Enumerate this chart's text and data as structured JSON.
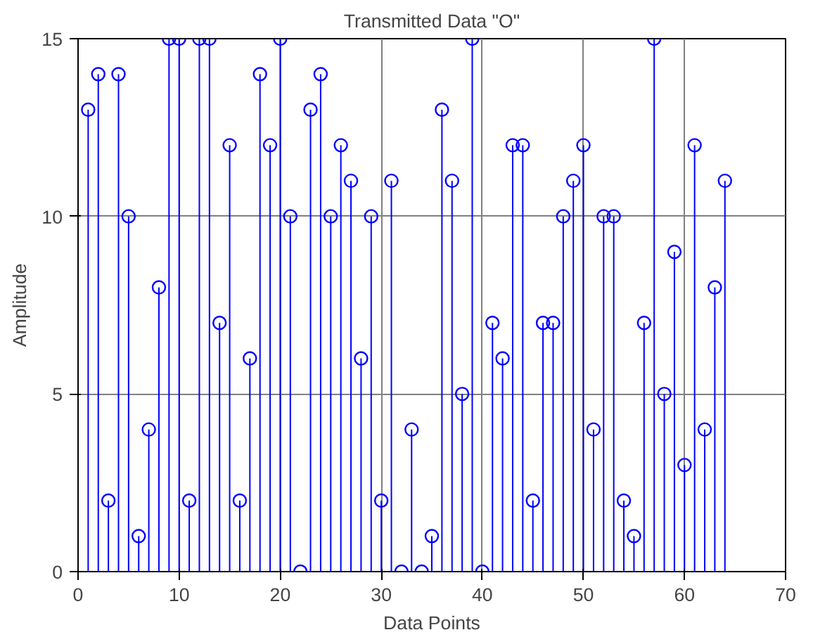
{
  "chart_data": {
    "type": "lollipop",
    "title": "Transmitted Data \"O\"",
    "xlabel": "Data Points",
    "ylabel": "Amplitude",
    "x": [
      1,
      2,
      3,
      4,
      5,
      6,
      7,
      8,
      9,
      10,
      11,
      12,
      13,
      14,
      15,
      16,
      17,
      18,
      19,
      20,
      21,
      22,
      23,
      24,
      25,
      26,
      27,
      28,
      29,
      30,
      31,
      32,
      33,
      34,
      35,
      36,
      37,
      38,
      39,
      40,
      41,
      42,
      43,
      44,
      45,
      46,
      47,
      48,
      49,
      50,
      51,
      52,
      53,
      54,
      55,
      56,
      57,
      58,
      59,
      60,
      61,
      62,
      63,
      64
    ],
    "series": [
      {
        "color": "#0000ff",
        "values": [
          13,
          14,
          2,
          14,
          10,
          1,
          4,
          8,
          15,
          15,
          2,
          15,
          15,
          7,
          12,
          2,
          6,
          14,
          12,
          15,
          10,
          0,
          13,
          14,
          10,
          12,
          11,
          6,
          10,
          2,
          11,
          0,
          4,
          0,
          1,
          13,
          11,
          5,
          15,
          0,
          7,
          6,
          12,
          12,
          2,
          7,
          7,
          10,
          11,
          12,
          4,
          10,
          10,
          2,
          1,
          7,
          15,
          5,
          9,
          3,
          12,
          4,
          8,
          11
        ]
      }
    ],
    "xlim": [
      0,
      70
    ],
    "xticks": [
      0,
      10,
      20,
      30,
      40,
      50,
      60,
      70
    ],
    "ylim": [
      0,
      15
    ],
    "yticks": [
      0,
      5,
      10,
      15
    ],
    "grid": true,
    "marker": "circle"
  }
}
